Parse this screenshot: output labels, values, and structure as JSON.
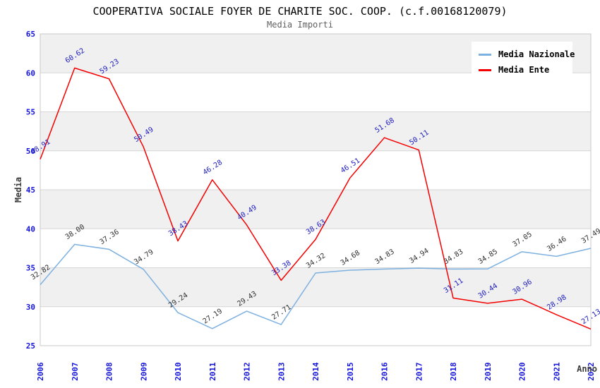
{
  "header": {
    "title": "COOPERATIVA SOCIALE FOYER DE CHARITE SOC. COOP. (c.f.00168120079)",
    "subtitle": "Media Importi"
  },
  "colors": {
    "axis_tick_label": "#1414dc",
    "axis_title": "#3c3c3c",
    "band_gray": "#f0f0f0",
    "band_white": "#ffffff",
    "gridline": "#d6d6d6",
    "plot_border": "#c8c8c8",
    "nazionale_line": "#7db1e0",
    "nazionale_label": "#303030",
    "ente_line": "#f50000",
    "ente_label": "#2020c0"
  },
  "chart_data": {
    "type": "line",
    "title": "COOPERATIVA SOCIALE FOYER DE CHARITE SOC. COOP. (c.f.00168120079)",
    "subtitle": "Media Importi",
    "xlabel": "Anno",
    "ylabel": "Media",
    "ylim": [
      25,
      65
    ],
    "ytick_step": 5,
    "yticks": [
      25,
      30,
      35,
      40,
      45,
      50,
      55,
      60,
      65
    ],
    "grid": "horizontal-bands-alternating",
    "legend_position": "top-right",
    "point_labels": "all-points-two-decimals",
    "x": [
      2006,
      2007,
      2008,
      2009,
      2010,
      2011,
      2012,
      2013,
      2014,
      2015,
      2016,
      2017,
      2018,
      2019,
      2020,
      2021,
      2022
    ],
    "series": [
      {
        "name": "Media Nazionale",
        "color": "#7db1e0",
        "label_color": "#303030",
        "values": [
          32.82,
          38.0,
          37.36,
          34.79,
          29.24,
          27.19,
          29.43,
          27.71,
          34.32,
          34.68,
          34.83,
          34.94,
          34.83,
          34.85,
          37.05,
          36.46,
          37.49
        ]
      },
      {
        "name": "Media Ente",
        "color": "#f50000",
        "label_color": "#2020c0",
        "values": [
          48.91,
          60.62,
          59.23,
          50.49,
          38.43,
          46.28,
          40.49,
          33.38,
          38.63,
          46.51,
          51.68,
          50.11,
          31.11,
          30.44,
          30.96,
          28.98,
          27.13
        ]
      }
    ]
  }
}
